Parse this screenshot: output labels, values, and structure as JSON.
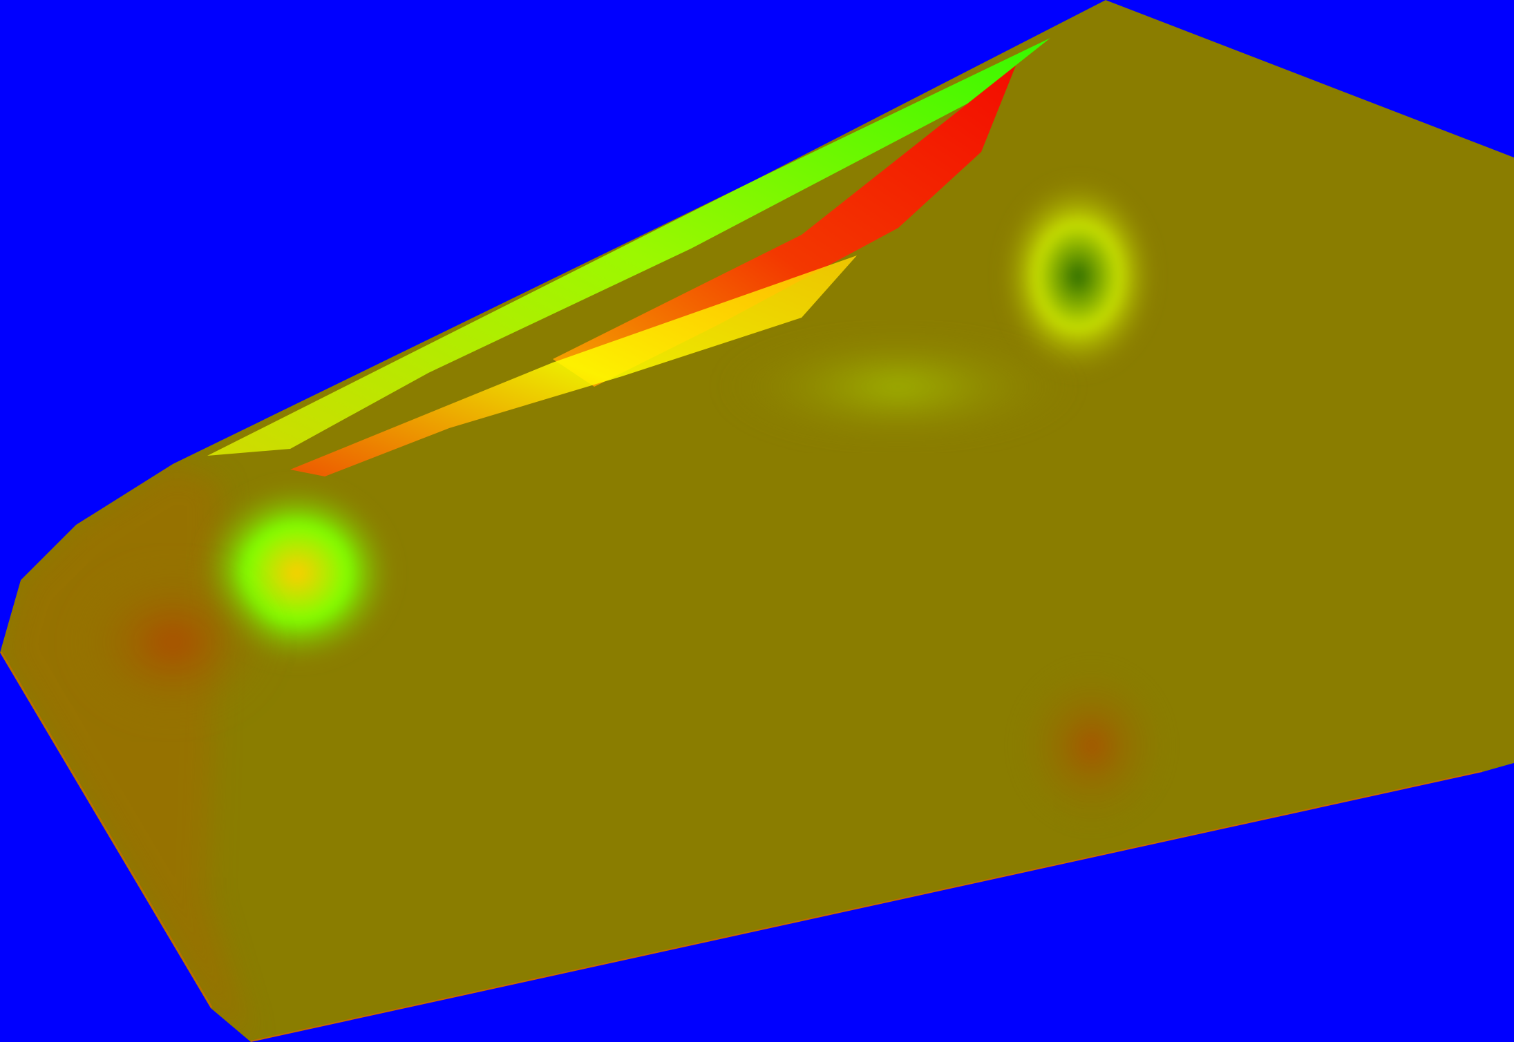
{
  "background": {
    "color": "#0000ff"
  },
  "mesh": {
    "base_color": "#8a7d00",
    "highlight_colors": [
      "#ffff00",
      "#ff0000",
      "#00ff00",
      "#c8a000"
    ]
  }
}
